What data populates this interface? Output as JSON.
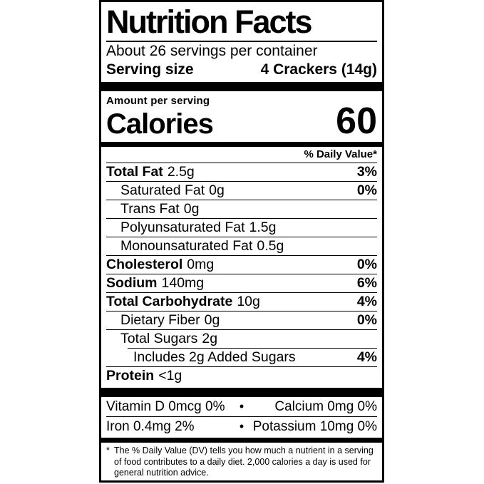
{
  "colors": {
    "ink": "#000000",
    "background": "#ffffff"
  },
  "label": {
    "title": "Nutrition Facts",
    "servings_per_container": "About 26 servings per container",
    "serving_size": {
      "label": "Serving size",
      "value": "4 Crackers (14g)"
    },
    "amount_per_serving": "Amount per serving",
    "calories": {
      "label": "Calories",
      "value": "60"
    },
    "daily_value_header": "% Daily Value*",
    "nutrients": [
      {
        "name": "Total Fat",
        "amount": "2.5g",
        "dv": "3%"
      },
      {
        "name": "Saturated Fat",
        "amount": "0g",
        "dv": "0%"
      },
      {
        "name": "Trans Fat",
        "amount": "0g",
        "dv": ""
      },
      {
        "name": "Polyunsaturated Fat",
        "amount": "1.5g",
        "dv": ""
      },
      {
        "name": "Monounsaturated Fat",
        "amount": "0.5g",
        "dv": ""
      },
      {
        "name": "Cholesterol",
        "amount": "0mg",
        "dv": "0%"
      },
      {
        "name": "Sodium",
        "amount": "140mg",
        "dv": "6%"
      },
      {
        "name": "Total Carbohydrate",
        "amount": "10g",
        "dv": "4%"
      },
      {
        "name": "Dietary Fiber",
        "amount": "0g",
        "dv": "0%"
      },
      {
        "name": "Total Sugars",
        "amount": "2g",
        "dv": ""
      },
      {
        "name": "Includes 2g Added Sugars",
        "amount": "",
        "dv": "4%"
      },
      {
        "name": "Protein",
        "amount": "<1g",
        "dv": ""
      }
    ],
    "micronutrients": {
      "bullet": "•",
      "rows": [
        {
          "left": "Vitamin D 0mcg 0%",
          "right": "Calcium 0mg 0%"
        },
        {
          "left": "Iron 0.4mg 2%",
          "right": "Potassium 10mg 0%"
        }
      ]
    },
    "footnote": {
      "marker": "*",
      "text": "The % Daily Value (DV) tells you how much a nutrient in a serving of food contributes to a daily diet. 2,000 calories a day is used for general nutrition advice."
    }
  }
}
